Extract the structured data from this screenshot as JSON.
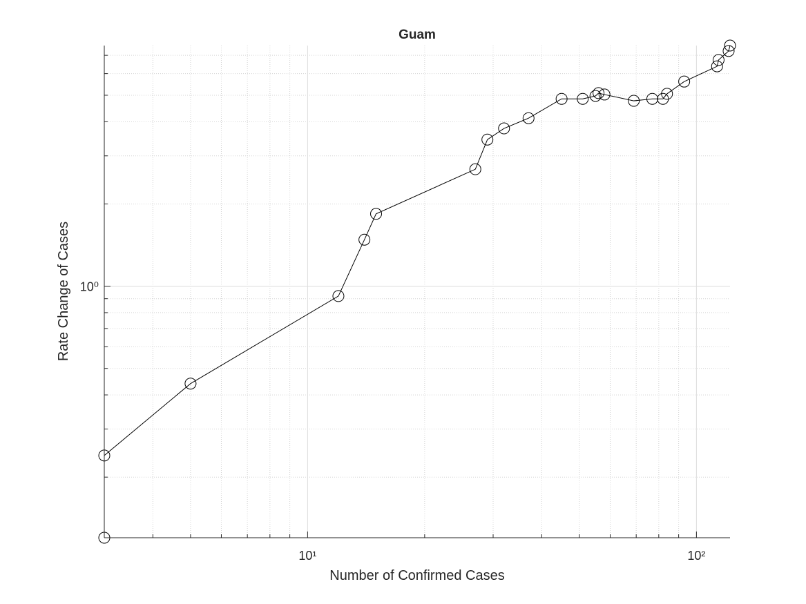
{
  "chart_data": {
    "type": "line",
    "title": "Guam",
    "xlabel": "Number of Confirmed Cases",
    "ylabel": "Rate Change of Cases",
    "xscale": "log",
    "yscale": "log",
    "x": [
      3,
      3,
      5,
      12,
      14,
      15,
      27,
      29,
      32,
      37,
      45,
      51,
      55,
      56,
      58,
      69,
      77,
      82,
      84,
      93,
      113,
      114,
      121,
      122
    ],
    "series": [
      {
        "color": "#000000",
        "marker": "circle",
        "values": [
          0.12,
          0.24,
          0.44,
          0.92,
          1.48,
          1.84,
          2.68,
          3.44,
          3.78,
          4.12,
          4.85,
          4.85,
          4.97,
          5.09,
          5.03,
          4.77,
          4.85,
          4.85,
          5.06,
          5.61,
          6.38,
          6.73,
          7.26,
          7.6
        ]
      }
    ],
    "xlim": [
      3,
      122
    ],
    "ylim": [
      0.12,
      7.6
    ],
    "xticks": [
      {
        "value": 10,
        "label": "10¹"
      },
      {
        "value": 100,
        "label": "10²"
      }
    ],
    "yticks": [
      {
        "value": 1,
        "label": "10⁰"
      }
    ],
    "grid": true,
    "minor_grid": true
  }
}
